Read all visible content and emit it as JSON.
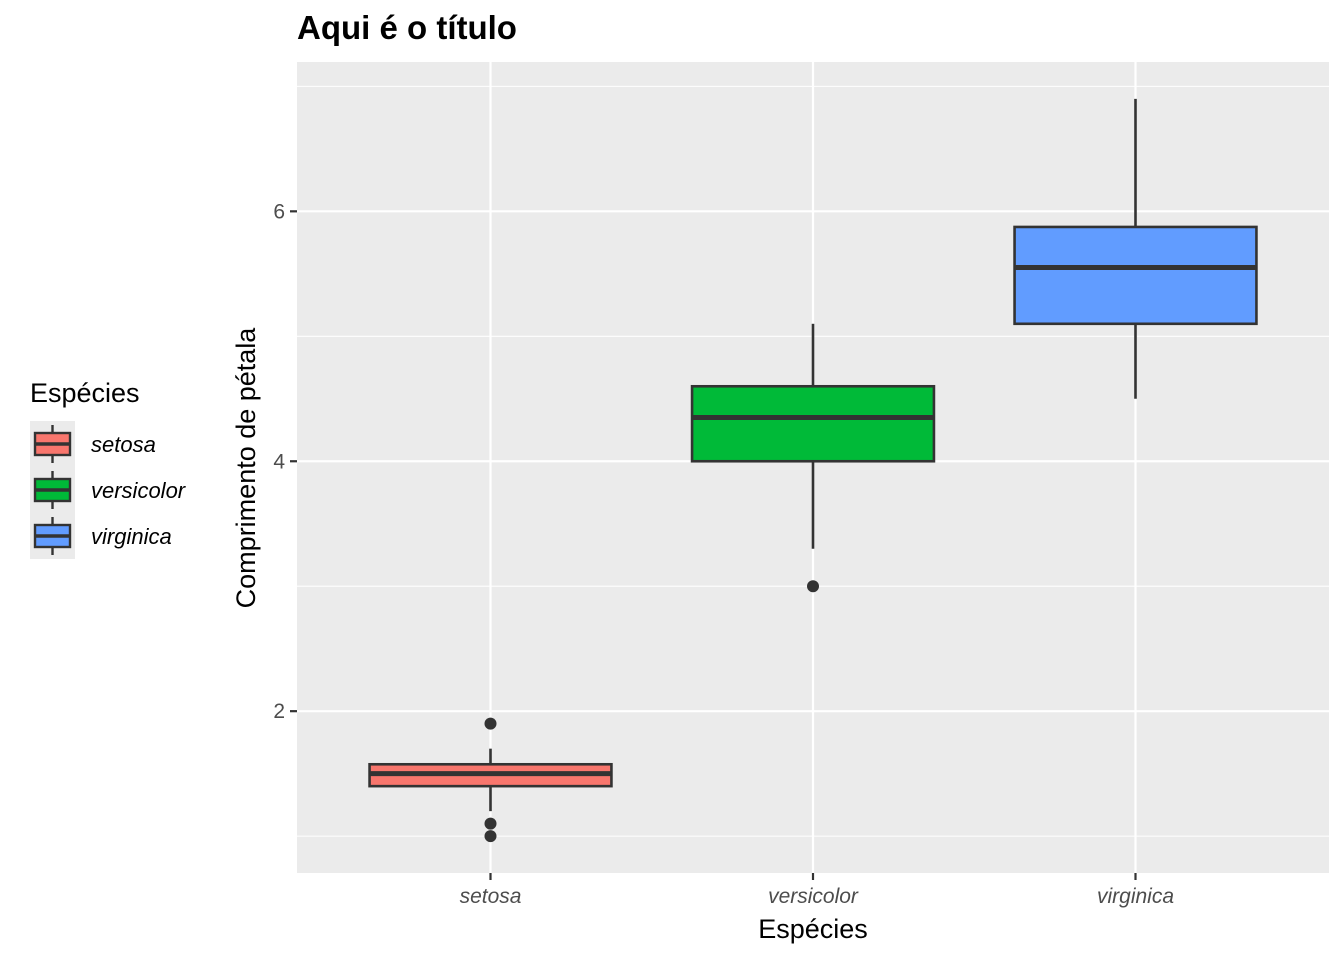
{
  "chart_data": {
    "type": "boxplot",
    "title": "Aqui é o título",
    "xlabel": "Espécies",
    "ylabel": "Comprimento de pétala",
    "categories": [
      "setosa",
      "versicolor",
      "virginica"
    ],
    "ylim": [
      0.705,
      7.195
    ],
    "y_ticks": [
      2,
      4,
      6
    ],
    "y_tick_labels": [
      "2",
      "4",
      "6"
    ],
    "grid": true,
    "legend": {
      "title": "Espécies",
      "position": "left",
      "entries": [
        "setosa",
        "versicolor",
        "virginica"
      ]
    },
    "colors": {
      "setosa": "#F8766D",
      "versicolor": "#00BA38",
      "virginica": "#619CFF",
      "panel_background": "#EBEBEB",
      "grid": "#FFFFFF",
      "box_outline": "#333333"
    },
    "series": [
      {
        "category": "setosa",
        "lower_whisker": 1.2,
        "q1": 1.4,
        "median": 1.5,
        "q3": 1.575,
        "upper_whisker": 1.7,
        "outliers": [
          1.9,
          1.1,
          1.0
        ]
      },
      {
        "category": "versicolor",
        "lower_whisker": 3.3,
        "q1": 4.0,
        "median": 4.35,
        "q3": 4.6,
        "upper_whisker": 5.1,
        "outliers": [
          3.0
        ]
      },
      {
        "category": "virginica",
        "lower_whisker": 4.5,
        "q1": 5.1,
        "median": 5.55,
        "q3": 5.875,
        "upper_whisker": 6.9,
        "outliers": []
      }
    ]
  }
}
